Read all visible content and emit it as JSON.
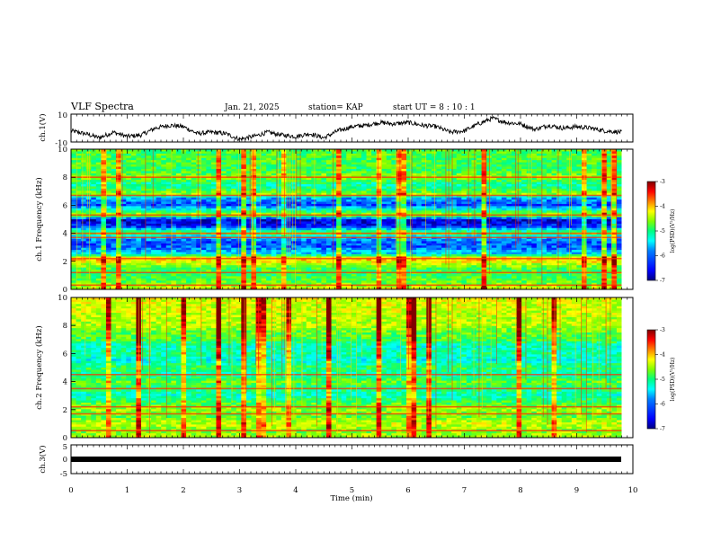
{
  "header": {
    "title": "VLF Spectra",
    "date": "Jan. 21, 2025",
    "station": "station= KAP",
    "start": "start UT =  8 : 10 : 1"
  },
  "colors": {
    "colormap": [
      "#000080",
      "#0000ff",
      "#0080ff",
      "#00ffff",
      "#00ff80",
      "#80ff00",
      "#ffff00",
      "#ff8000",
      "#ff0000",
      "#800000"
    ],
    "frame": "#000000",
    "waveform": "#000000"
  },
  "chart_data": [
    {
      "id": "ch1-waveform",
      "type": "line",
      "ylabel": "ch.1(V)",
      "ylim": [
        -10,
        10
      ],
      "yticks": [
        "10",
        "-10"
      ],
      "x": [
        0,
        0.25,
        0.5,
        0.75,
        1.0,
        1.25,
        1.5,
        1.75,
        2.0,
        2.25,
        2.5,
        2.75,
        3.0,
        3.25,
        3.5,
        3.75,
        4.0,
        4.25,
        4.5,
        4.75,
        5.0,
        5.25,
        5.5,
        5.75,
        6.0,
        6.25,
        6.5,
        6.75,
        7.0,
        7.25,
        7.5,
        7.75,
        8.0,
        8.25,
        8.5,
        8.75,
        9.0,
        9.25,
        9.5,
        9.8
      ],
      "y": [
        -2,
        -4,
        -7,
        -3,
        -6,
        -5,
        0,
        2,
        1,
        -4,
        -3,
        -4,
        -8,
        -6,
        -3,
        -5,
        -6,
        -4,
        -7,
        -2,
        1,
        2,
        4,
        3,
        4,
        2,
        1,
        -3,
        -2,
        3,
        7,
        4,
        3,
        -1,
        2,
        0,
        1,
        0,
        -2,
        -3
      ]
    },
    {
      "id": "ch1-spectrogram",
      "type": "heatmap",
      "ylabel": "ch.1\nFrequency (kHz)",
      "ylim": [
        0,
        10
      ],
      "yticks": [
        "0",
        "2",
        "4",
        "6",
        "8",
        "10"
      ],
      "xlim": [
        0,
        10
      ],
      "data_xlim": [
        0,
        9.8
      ],
      "colorbar": {
        "label": "log(PSD)(V²/Hz)",
        "range": [
          -7,
          -3
        ],
        "ticks": [
          "-3",
          "-4",
          "-5",
          "-6",
          "-7"
        ]
      },
      "freq_profile_kHz": [
        0,
        0.5,
        1.0,
        1.5,
        2.0,
        2.2,
        2.5,
        3.0,
        3.3,
        3.8,
        4.0,
        4.5,
        5.0,
        5.3,
        5.6,
        6.0,
        6.5,
        6.8,
        7.2,
        7.5,
        8.0,
        8.5,
        9.0,
        9.5,
        10.0
      ],
      "log_psd_profile": [
        -4.4,
        -4.9,
        -5.1,
        -5.0,
        -4.3,
        -4.0,
        -5.7,
        -6.2,
        -6.3,
        -5.8,
        -4.8,
        -6.5,
        -6.7,
        -4.5,
        -5.3,
        -6.3,
        -6.0,
        -4.7,
        -5.2,
        -5.4,
        -4.7,
        -5.1,
        -5.0,
        -5.0,
        -5.0
      ],
      "line_frequencies_kHz": [
        0.3,
        1.2,
        2.2,
        3.7,
        4.0,
        5.3,
        6.7,
        8.0
      ]
    },
    {
      "id": "ch2-spectrogram",
      "type": "heatmap",
      "ylabel": "ch.2\nFrequency (kHz)",
      "ylim": [
        0,
        10
      ],
      "yticks": [
        "0",
        "2",
        "4",
        "6",
        "8",
        "10"
      ],
      "xlim": [
        0,
        10
      ],
      "data_xlim": [
        0,
        9.8
      ],
      "colorbar": {
        "label": "log(PSD)(V²/Hz)",
        "range": [
          -7,
          -3
        ],
        "ticks": [
          "-3",
          "-4",
          "-5",
          "-6",
          "-7"
        ]
      },
      "freq_profile_kHz": [
        0,
        0.5,
        1.0,
        1.5,
        2.0,
        2.5,
        3.0,
        3.5,
        4.0,
        4.5,
        5.0,
        5.5,
        6.0,
        6.5,
        7.0,
        7.5,
        8.0,
        8.5,
        9.0,
        9.5,
        10.0
      ],
      "log_psd_profile": [
        -4.6,
        -4.8,
        -4.5,
        -4.9,
        -4.7,
        -5.0,
        -5.5,
        -5.2,
        -4.9,
        -5.4,
        -5.1,
        -5.6,
        -5.3,
        -5.5,
        -5.0,
        -4.9,
        -4.6,
        -4.6,
        -4.5,
        -4.5,
        -4.4
      ],
      "line_frequencies_kHz": [
        0.5,
        1.7,
        2.2,
        3.5,
        4.5
      ]
    },
    {
      "id": "ch3-trace",
      "type": "line",
      "ylabel": "ch.3(V)",
      "ylim": [
        -5,
        5
      ],
      "yticks": [
        "5",
        "0",
        "-5"
      ],
      "x": [
        0,
        9.8
      ],
      "y": [
        0,
        0
      ]
    }
  ],
  "xaxis": {
    "label": "Time (min)",
    "ticks": [
      "0",
      "1",
      "2",
      "3",
      "4",
      "5",
      "6",
      "7",
      "8",
      "9",
      "10"
    ],
    "range": [
      0,
      10
    ]
  }
}
